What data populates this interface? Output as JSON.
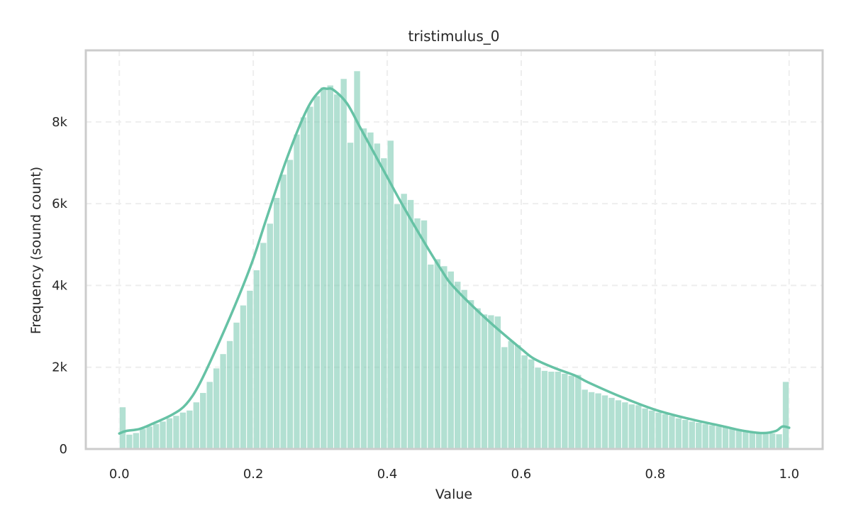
{
  "chart_data": {
    "type": "bar",
    "title": "tristimulus_0",
    "xlabel": "Value",
    "ylabel": "Frequency (sound count)",
    "xlim": [
      -0.05,
      1.05
    ],
    "ylim": [
      0,
      9750
    ],
    "x_ticks": [
      0.0,
      0.2,
      0.4,
      0.6,
      0.8,
      1.0
    ],
    "x_tick_labels": [
      "0.0",
      "0.2",
      "0.4",
      "0.6",
      "0.8",
      "1.0"
    ],
    "y_ticks": [
      0,
      2000,
      4000,
      6000,
      8000
    ],
    "y_tick_labels": [
      "0",
      "2k",
      "4k",
      "6k",
      "8k"
    ],
    "grid": true,
    "bin_width": 0.01,
    "bin_starts": [
      0.0,
      0.01,
      0.02,
      0.03,
      0.04,
      0.05,
      0.06,
      0.07,
      0.08,
      0.09,
      0.1,
      0.11,
      0.12,
      0.13,
      0.14,
      0.15,
      0.16,
      0.17,
      0.18,
      0.19,
      0.2,
      0.21,
      0.22,
      0.23,
      0.24,
      0.25,
      0.26,
      0.27,
      0.28,
      0.29,
      0.3,
      0.31,
      0.32,
      0.33,
      0.34,
      0.35,
      0.36,
      0.37,
      0.38,
      0.39,
      0.4,
      0.41,
      0.42,
      0.43,
      0.44,
      0.45,
      0.46,
      0.47,
      0.48,
      0.49,
      0.5,
      0.51,
      0.52,
      0.53,
      0.54,
      0.55,
      0.56,
      0.57,
      0.58,
      0.59,
      0.6,
      0.61,
      0.62,
      0.63,
      0.64,
      0.65,
      0.66,
      0.67,
      0.68,
      0.69,
      0.7,
      0.71,
      0.72,
      0.73,
      0.74,
      0.75,
      0.76,
      0.77,
      0.78,
      0.79,
      0.8,
      0.81,
      0.82,
      0.83,
      0.84,
      0.85,
      0.86,
      0.87,
      0.88,
      0.89,
      0.9,
      0.91,
      0.92,
      0.93,
      0.94,
      0.95,
      0.96,
      0.97,
      0.98,
      0.99
    ],
    "values": [
      1030,
      360,
      400,
      500,
      560,
      620,
      680,
      760,
      820,
      900,
      950,
      1150,
      1380,
      1650,
      1980,
      2330,
      2650,
      3100,
      3520,
      3880,
      4380,
      5050,
      5520,
      6150,
      6720,
      7080,
      7700,
      8120,
      8380,
      8640,
      8850,
      8900,
      8680,
      9060,
      7500,
      9250,
      7850,
      7750,
      7480,
      7120,
      7550,
      6000,
      6250,
      6100,
      5650,
      5600,
      4520,
      4650,
      4480,
      4350,
      4100,
      3900,
      3650,
      3450,
      3300,
      3280,
      3250,
      2500,
      2650,
      2550,
      2300,
      2200,
      2000,
      1920,
      1900,
      1900,
      1850,
      1800,
      1820,
      1460,
      1400,
      1370,
      1320,
      1260,
      1200,
      1150,
      1100,
      1080,
      1000,
      950,
      900,
      860,
      820,
      760,
      720,
      680,
      650,
      620,
      590,
      560,
      540,
      510,
      490,
      470,
      440,
      420,
      400,
      390,
      370,
      1650
    ],
    "kde": {
      "x": [
        0.0,
        0.01,
        0.03,
        0.05,
        0.08,
        0.1,
        0.12,
        0.15,
        0.18,
        0.2,
        0.22,
        0.25,
        0.28,
        0.3,
        0.31,
        0.32,
        0.34,
        0.36,
        0.38,
        0.4,
        0.42,
        0.45,
        0.48,
        0.5,
        0.55,
        0.6,
        0.62,
        0.65,
        0.68,
        0.7,
        0.75,
        0.8,
        0.85,
        0.9,
        0.93,
        0.96,
        0.98,
        0.99,
        1.0
      ],
      "y": [
        380,
        440,
        490,
        620,
        850,
        1100,
        1600,
        2650,
        3800,
        4650,
        5650,
        7100,
        8300,
        8770,
        8810,
        8780,
        8450,
        7850,
        7250,
        6650,
        6050,
        5200,
        4400,
        3950,
        3150,
        2450,
        2200,
        1980,
        1800,
        1630,
        1270,
        960,
        740,
        560,
        450,
        390,
        440,
        550,
        520
      ]
    },
    "colors": {
      "bar": "#66c2a5",
      "bar_opacity": 0.5,
      "line": "#66c2a5",
      "grid": "#eeeeee",
      "frame": "#cccccc",
      "text": "#262626"
    }
  }
}
